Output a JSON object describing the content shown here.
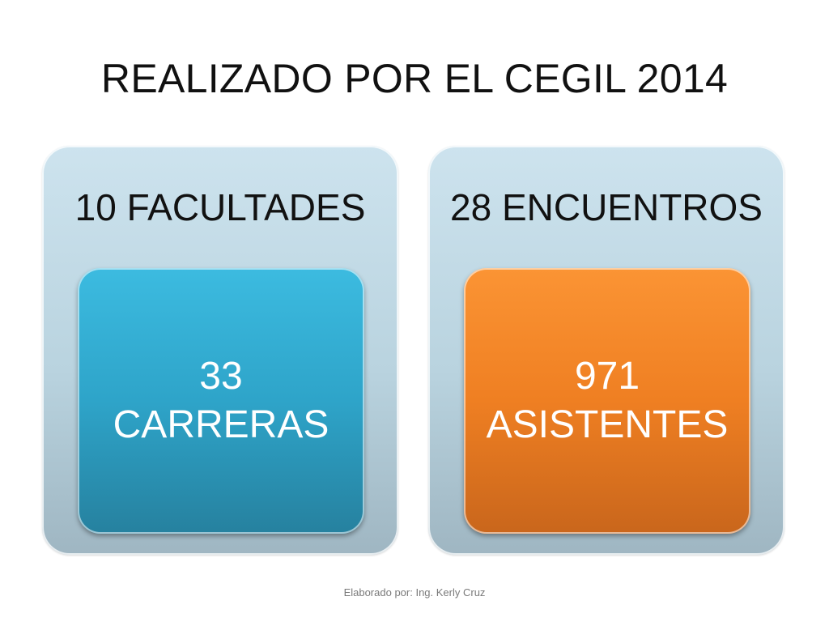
{
  "slide": {
    "title": "REALIZADO POR EL CEGIL 2014",
    "panels": [
      {
        "heading": "10 FACULTADES",
        "inner_number": "33",
        "inner_label": "CARRERAS",
        "inner_color": "#2ea4c9"
      },
      {
        "heading": "28 ENCUENTROS",
        "inner_number": "971",
        "inner_label": "ASISTENTES",
        "inner_color": "#ef7f22"
      }
    ],
    "panel_color": "#c3dbe6",
    "footer": "Elaborado por: Ing. Kerly Cruz"
  }
}
